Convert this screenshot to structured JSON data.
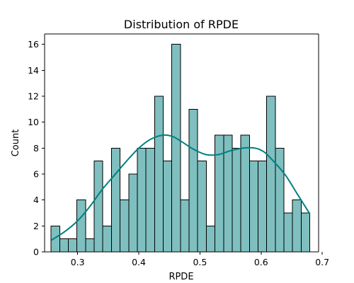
{
  "chart_data": {
    "type": "bar",
    "title": "Distribution of RPDE",
    "xlabel": "RPDE",
    "ylabel": "Count",
    "xlim": [
      0.246,
      0.694
    ],
    "ylim": [
      0,
      16.8
    ],
    "xticks": [
      0.3,
      0.4,
      0.5,
      0.6,
      0.7
    ],
    "xtick_labels": [
      "0.3",
      "0.4",
      "0.5",
      "0.6",
      "0.7"
    ],
    "yticks": [
      0,
      2,
      4,
      6,
      8,
      10,
      12,
      14,
      16
    ],
    "ytick_labels": [
      "0",
      "2",
      "4",
      "6",
      "8",
      "10",
      "12",
      "14",
      "16"
    ],
    "bin_edges": [
      0.2566,
      0.2707,
      0.2848,
      0.2989,
      0.313,
      0.3271,
      0.3412,
      0.3553,
      0.3694,
      0.3835,
      0.3976,
      0.4117,
      0.4258,
      0.4399,
      0.454,
      0.4681,
      0.4822,
      0.4963,
      0.5104,
      0.5245,
      0.5386,
      0.5527,
      0.5668,
      0.5809,
      0.595,
      0.6091,
      0.6232,
      0.6373,
      0.6514,
      0.6655,
      0.6796
    ],
    "counts": [
      2,
      1,
      1,
      4,
      1,
      7,
      2,
      8,
      4,
      6,
      8,
      8,
      12,
      7,
      16,
      4,
      11,
      7,
      2,
      9,
      9,
      8,
      9,
      7,
      7,
      12,
      8,
      3,
      4,
      3
    ],
    "kde": {
      "x": [
        0.257,
        0.28,
        0.3,
        0.32,
        0.34,
        0.36,
        0.38,
        0.4,
        0.42,
        0.44,
        0.455,
        0.47,
        0.49,
        0.51,
        0.53,
        0.55,
        0.57,
        0.59,
        0.605,
        0.62,
        0.64,
        0.66,
        0.68
      ],
      "y": [
        0.9,
        1.6,
        2.4,
        3.5,
        4.8,
        5.9,
        7.0,
        8.0,
        8.7,
        9.0,
        8.9,
        8.5,
        7.9,
        7.5,
        7.5,
        7.8,
        8.0,
        8.0,
        7.7,
        7.0,
        5.9,
        4.4,
        2.9
      ]
    },
    "bar_color": "#7fbfbf",
    "line_color": "#008080",
    "grid": false,
    "legend": "none"
  }
}
